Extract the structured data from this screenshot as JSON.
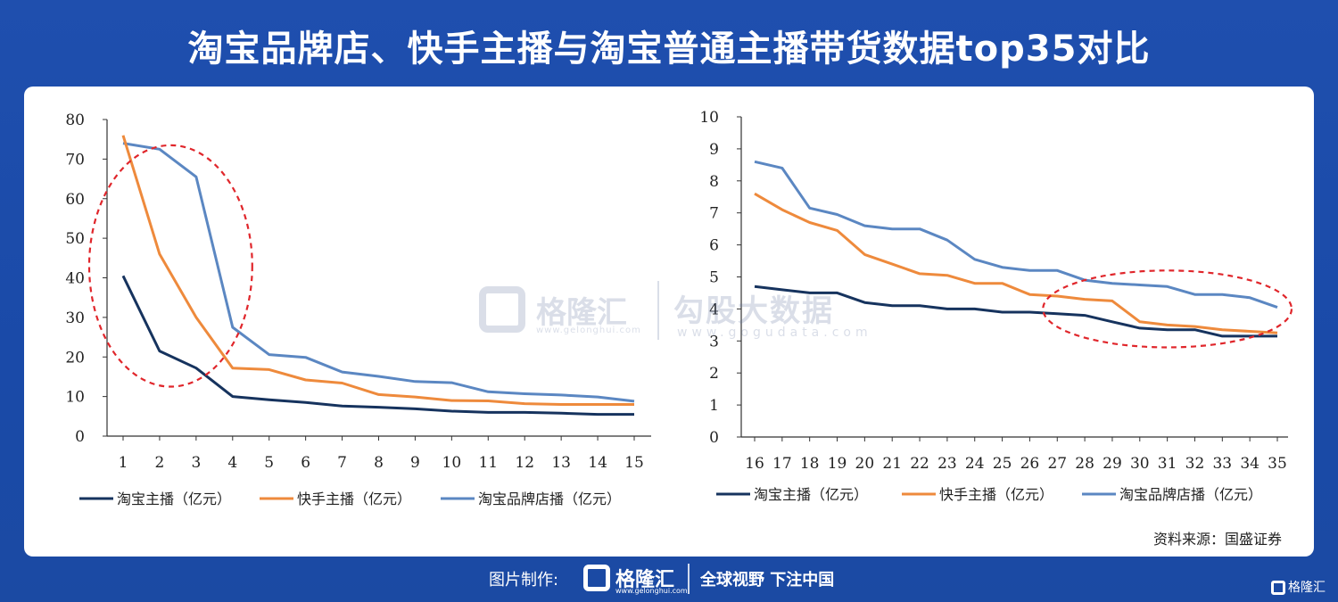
{
  "title": "淘宝品牌店、快手主播与淘宝普通主播带货数据top35对比",
  "source": "资料来源：国盛证券",
  "watermark": {
    "brand": "格隆汇",
    "brand_url": "www.gelonghui.com",
    "site": "勾股大数据",
    "site_url": "www.gogudata.com"
  },
  "footer": {
    "made_by": "图片制作:",
    "brand": "格隆汇",
    "brand_url": "www.gelonghui.com",
    "slogan": "全球视野 下注中国",
    "corner_brand": "格隆汇"
  },
  "colors": {
    "taobao": "#16335e",
    "kuaishou": "#ee8a3c",
    "brand_store": "#5b87c2",
    "ellipse": "#e0262b"
  },
  "chart_data": [
    {
      "type": "line",
      "categories": [
        "1",
        "2",
        "3",
        "4",
        "5",
        "6",
        "7",
        "8",
        "9",
        "10",
        "11",
        "12",
        "13",
        "14",
        "15"
      ],
      "ylim": [
        0,
        80
      ],
      "yticks": [
        0,
        10,
        20,
        30,
        40,
        50,
        60,
        70,
        80
      ],
      "grid": false,
      "legend_position": "bottom",
      "series": [
        {
          "name": "淘宝主播（亿元）",
          "key": "taobao",
          "values": [
            40.5,
            21.5,
            17.2,
            10.0,
            9.2,
            8.5,
            7.6,
            7.3,
            6.9,
            6.3,
            6.0,
            6.0,
            5.8,
            5.5,
            5.5
          ]
        },
        {
          "name": "快手主播（亿元）",
          "key": "kuaishou",
          "values": [
            76.0,
            46.0,
            30.0,
            17.2,
            16.8,
            14.2,
            13.4,
            10.5,
            9.9,
            9.0,
            8.9,
            8.2,
            8.0,
            8.0,
            8.0
          ]
        },
        {
          "name": "淘宝品牌店播（亿元）",
          "key": "brand_store",
          "values": [
            74.0,
            72.5,
            65.5,
            27.5,
            20.6,
            19.9,
            16.2,
            15.1,
            13.8,
            13.5,
            11.2,
            10.7,
            10.4,
            9.9,
            8.8
          ]
        }
      ],
      "annotation": {
        "type": "ellipse",
        "x_range": [
          "1",
          "4"
        ]
      }
    },
    {
      "type": "line",
      "categories": [
        "16",
        "17",
        "18",
        "19",
        "20",
        "21",
        "22",
        "23",
        "24",
        "25",
        "26",
        "27",
        "28",
        "29",
        "30",
        "31",
        "32",
        "33",
        "34",
        "35"
      ],
      "ylim": [
        0,
        10
      ],
      "yticks": [
        0,
        1,
        2,
        3,
        4,
        5,
        6,
        7,
        8,
        9,
        10
      ],
      "grid": false,
      "legend_position": "bottom",
      "series": [
        {
          "name": "淘宝主播（亿元）",
          "key": "taobao",
          "values": [
            4.7,
            4.6,
            4.5,
            4.5,
            4.2,
            4.1,
            4.1,
            4.0,
            4.0,
            3.9,
            3.9,
            3.85,
            3.8,
            3.6,
            3.4,
            3.35,
            3.35,
            3.15,
            3.15,
            3.15
          ]
        },
        {
          "name": "快手主播（亿元）",
          "key": "kuaishou",
          "values": [
            7.6,
            7.1,
            6.7,
            6.45,
            5.7,
            5.4,
            5.1,
            5.05,
            4.8,
            4.8,
            4.45,
            4.4,
            4.3,
            4.25,
            3.6,
            3.5,
            3.45,
            3.35,
            3.3,
            3.25
          ]
        },
        {
          "name": "淘宝品牌店播（亿元）",
          "key": "brand_store",
          "values": [
            8.6,
            8.4,
            7.15,
            6.95,
            6.6,
            6.5,
            6.5,
            6.15,
            5.55,
            5.3,
            5.2,
            5.2,
            4.9,
            4.8,
            4.75,
            4.7,
            4.45,
            4.45,
            4.35,
            4.05
          ]
        }
      ],
      "annotation": {
        "type": "ellipse",
        "x_range": [
          "27",
          "35"
        ]
      }
    }
  ]
}
